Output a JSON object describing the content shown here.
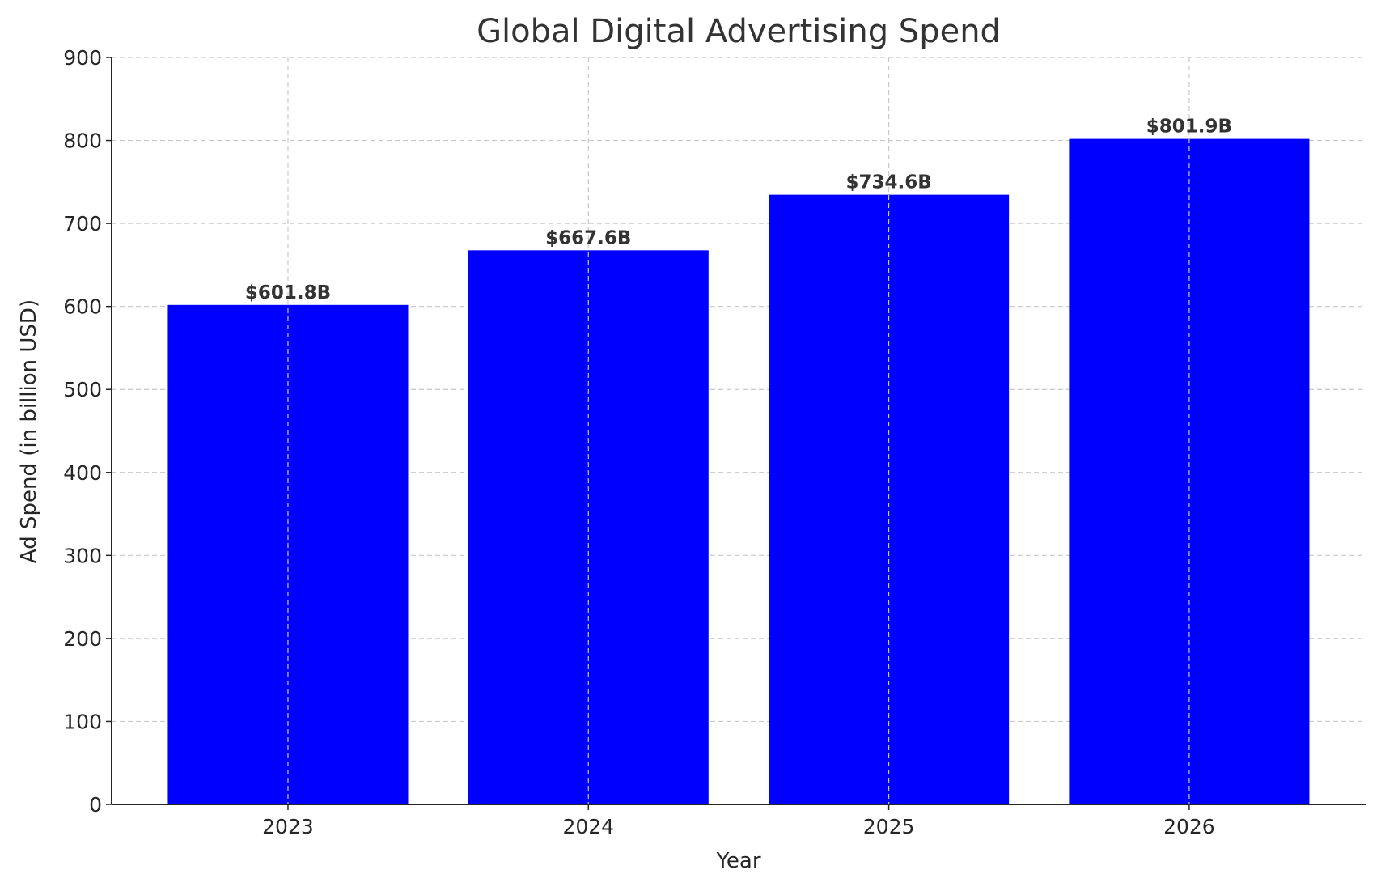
{
  "chart_data": {
    "type": "bar",
    "title": "Global Digital Advertising Spend",
    "xlabel": "Year",
    "ylabel": "Ad Spend (in billion USD)",
    "categories": [
      "2023",
      "2024",
      "2025",
      "2026"
    ],
    "values": [
      601.8,
      667.6,
      734.6,
      801.9
    ],
    "data_labels": [
      "$601.8B",
      "$667.6B",
      "$734.6B",
      "$801.9B"
    ],
    "ylim": [
      0,
      900
    ],
    "yticks": [
      0,
      100,
      200,
      300,
      400,
      500,
      600,
      700,
      800,
      900
    ],
    "grid": true,
    "bar_color": "#0000ff"
  }
}
